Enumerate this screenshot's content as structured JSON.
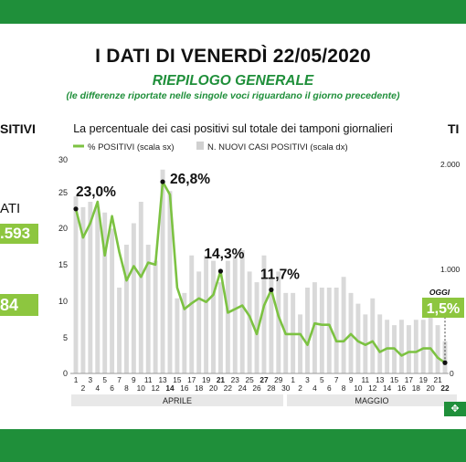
{
  "header": {
    "title": "I DATI DI VENERDÌ 22/05/2020",
    "subtitle": "RIEPILOGO GENERALE",
    "note": "(le differenze riportate nelle singole voci riguardano il giorno precedente)"
  },
  "side_left": {
    "heading": "SITIVI",
    "label": "ATI",
    "value1": ".593",
    "value2": "84"
  },
  "side_right": {
    "heading": "TI"
  },
  "colors": {
    "brand": "#1f8f3a",
    "line": "#7cc242",
    "bars": "#d9d9d9",
    "highlight": "#8dc63f"
  },
  "chart_data": {
    "type": "bar+line",
    "title": "La percentuale dei casi positivi sul totale dei tamponi giornalieri",
    "legend": [
      "% POSITIVI (scala sx)",
      "N. NUOVI CASI POSITIVI (scala dx)"
    ],
    "legend_placement": "top",
    "x_labels": [
      "1",
      "2",
      "3",
      "4",
      "5",
      "6",
      "7",
      "8",
      "9",
      "10",
      "11",
      "12",
      "13",
      "14",
      "15",
      "16",
      "17",
      "18",
      "19",
      "20",
      "21",
      "22",
      "23",
      "24",
      "25",
      "26",
      "27",
      "28",
      "29",
      "30",
      "1",
      "2",
      "3",
      "4",
      "5",
      "6",
      "7",
      "8",
      "9",
      "10",
      "11",
      "12",
      "13",
      "14",
      "15",
      "16",
      "17",
      "18",
      "19",
      "20",
      "21",
      "22"
    ],
    "month_labels": [
      "APRILE",
      "MAGGIO"
    ],
    "y_left_ticks": [
      "0",
      "5",
      "10",
      "15",
      "20",
      "25",
      "30"
    ],
    "y_left_lim": [
      0,
      30
    ],
    "y_right_ticks": [
      "0",
      "1.000",
      "2.000"
    ],
    "y_right_lim": [
      0,
      2000
    ],
    "series": [
      {
        "name": "% POSITIVI (scala sx)",
        "kind": "line",
        "values": [
          23.0,
          19,
          21,
          24,
          16.5,
          22,
          17,
          13,
          15,
          13.5,
          15.5,
          15.2,
          26.8,
          25,
          12,
          9,
          9.8,
          10.5,
          10,
          11,
          14.3,
          8.5,
          9,
          9.5,
          8,
          5.5,
          9.5,
          11.7,
          8,
          5.5,
          5.5,
          5.5,
          4,
          7,
          6.8,
          6.8,
          4.5,
          4.5,
          5.5,
          4.5,
          4,
          4.5,
          3,
          3.5,
          3.5,
          2.5,
          3,
          3,
          3.5,
          3.5,
          2.2,
          1.5
        ]
      },
      {
        "name": "N. NUOVI CASI POSITIVI (scala dx)",
        "kind": "bar",
        "values": [
          1650,
          1550,
          1600,
          1550,
          1500,
          1350,
          800,
          1200,
          1400,
          1600,
          1200,
          1050,
          1900,
          1700,
          700,
          750,
          1100,
          950,
          1100,
          1050,
          850,
          1050,
          1100,
          1150,
          950,
          850,
          1100,
          900,
          950,
          750,
          750,
          550,
          800,
          850,
          800,
          800,
          800,
          900,
          750,
          650,
          550,
          700,
          550,
          500,
          450,
          500,
          450,
          500,
          500,
          550,
          450,
          300
        ]
      }
    ],
    "annotations": [
      {
        "index": 0,
        "text": "23,0%"
      },
      {
        "index": 12,
        "text": "26,8%"
      },
      {
        "index": 20,
        "text": "14,3%"
      },
      {
        "index": 27,
        "text": "11,7%"
      },
      {
        "index": 51,
        "text": "1,5%",
        "tag": "OGGI"
      }
    ]
  }
}
